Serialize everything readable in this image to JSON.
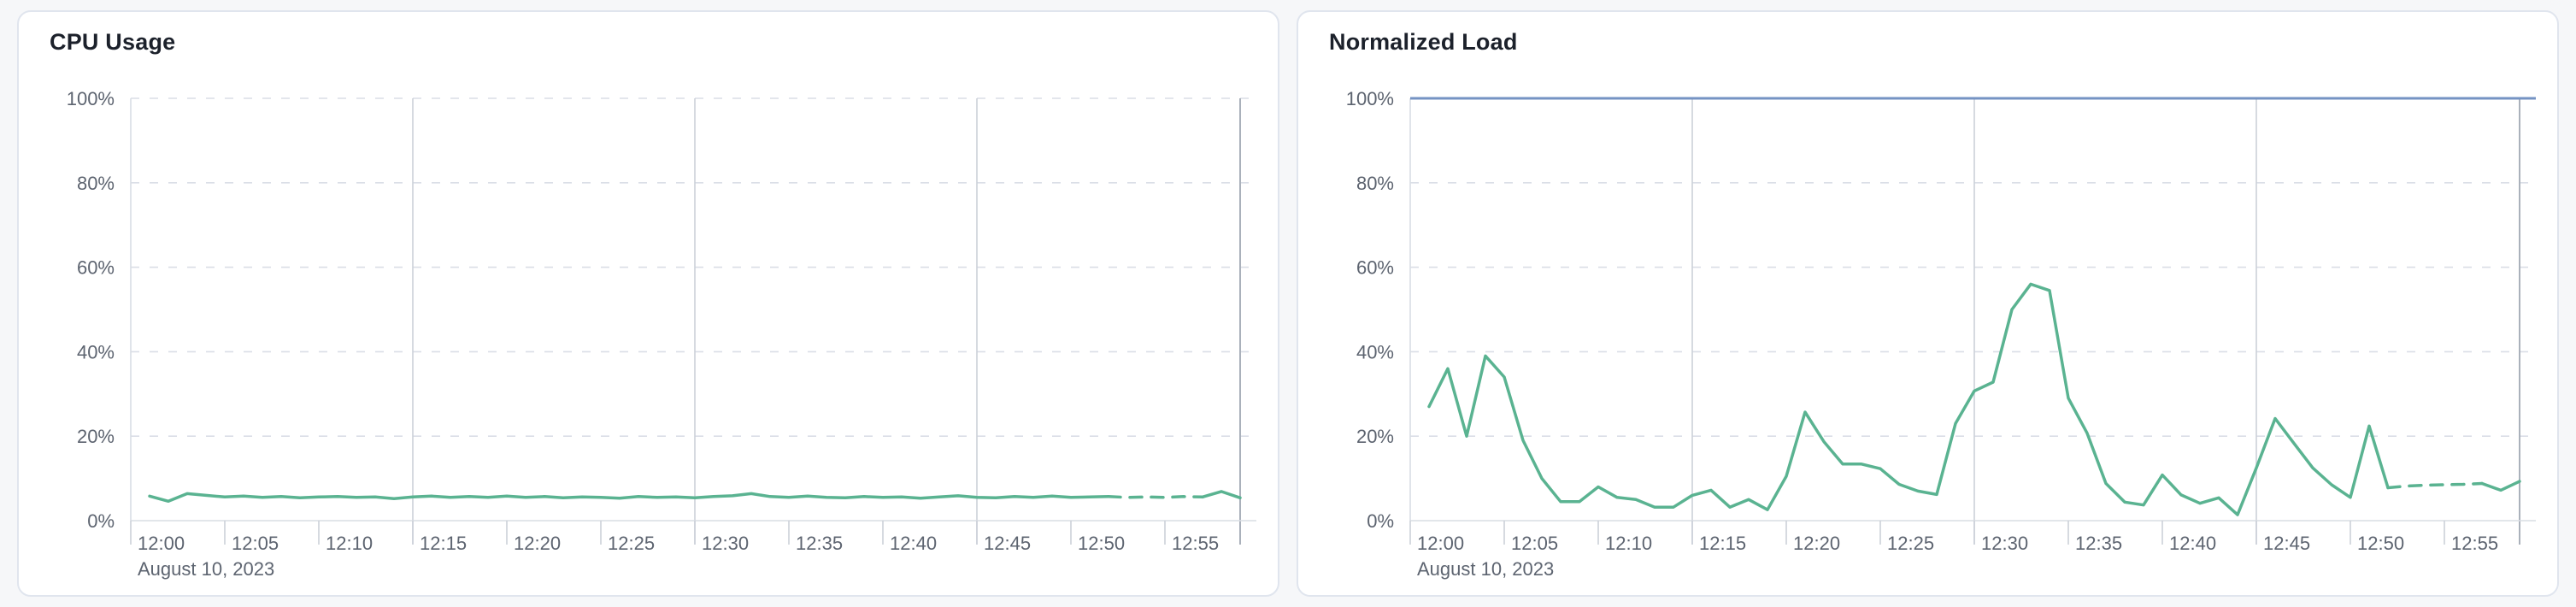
{
  "chart_data": [
    {
      "id": "cpu-usage",
      "type": "line",
      "title": "CPU Usage",
      "series_name": "CPU Usage",
      "series_color": "#5ab391",
      "ylabel": "",
      "xlabel": "",
      "ylim": [
        0,
        100
      ],
      "y_tick_labels": [
        "100%",
        "80%",
        "60%",
        "40%",
        "20%",
        "0%"
      ],
      "x_tick_labels": [
        "12:00",
        "12:05",
        "12:10",
        "12:15",
        "12:20",
        "12:25",
        "12:30",
        "12:35",
        "12:40",
        "12:45",
        "12:50",
        "12:55"
      ],
      "date_label": "August 10, 2023",
      "grid": "dashed-horizontal",
      "vertical_rule_times": [
        "12:15",
        "12:30",
        "12:45"
      ],
      "end_of_data_time": "12:59",
      "dashed_from_index": 51,
      "dashed_to_index": 56,
      "x": [
        "12:01",
        "12:02",
        "12:03",
        "12:04",
        "12:05",
        "12:06",
        "12:07",
        "12:08",
        "12:09",
        "12:10",
        "12:11",
        "12:12",
        "12:13",
        "12:14",
        "12:15",
        "12:16",
        "12:17",
        "12:18",
        "12:19",
        "12:20",
        "12:21",
        "12:22",
        "12:23",
        "12:24",
        "12:25",
        "12:26",
        "12:27",
        "12:28",
        "12:29",
        "12:30",
        "12:31",
        "12:32",
        "12:33",
        "12:34",
        "12:35",
        "12:36",
        "12:37",
        "12:38",
        "12:39",
        "12:40",
        "12:41",
        "12:42",
        "12:43",
        "12:44",
        "12:45",
        "12:46",
        "12:47",
        "12:48",
        "12:49",
        "12:50",
        "12:51",
        "12:52",
        "12:53",
        "12:54",
        "12:55",
        "12:56",
        "12:57",
        "12:58",
        "12:59"
      ],
      "values": [
        5.8,
        4.6,
        6.4,
        6.0,
        5.6,
        5.8,
        5.5,
        5.7,
        5.4,
        5.6,
        5.7,
        5.5,
        5.6,
        5.2,
        5.6,
        5.8,
        5.5,
        5.7,
        5.5,
        5.8,
        5.5,
        5.7,
        5.4,
        5.6,
        5.5,
        5.3,
        5.7,
        5.5,
        5.6,
        5.4,
        5.7,
        5.9,
        6.4,
        5.7,
        5.5,
        5.8,
        5.5,
        5.4,
        5.7,
        5.5,
        5.6,
        5.3,
        5.6,
        5.9,
        5.5,
        5.4,
        5.7,
        5.5,
        5.8,
        5.5,
        5.6,
        5.7,
        5.5,
        5.6,
        5.5,
        5.7,
        5.6,
        6.9,
        5.4
      ],
      "threshold_line": null
    },
    {
      "id": "normalized-load",
      "type": "line",
      "title": "Normalized Load",
      "series_name": "Normalized Load",
      "series_color": "#5ab391",
      "ylabel": "",
      "xlabel": "",
      "ylim": [
        0,
        100
      ],
      "y_tick_labels": [
        "100%",
        "80%",
        "60%",
        "40%",
        "20%",
        "0%"
      ],
      "x_tick_labels": [
        "12:00",
        "12:05",
        "12:10",
        "12:15",
        "12:20",
        "12:25",
        "12:30",
        "12:35",
        "12:40",
        "12:45",
        "12:50",
        "12:55"
      ],
      "date_label": "August 10, 2023",
      "grid": "dashed-horizontal",
      "vertical_rule_times": [
        "12:15",
        "12:30",
        "12:45"
      ],
      "end_of_data_time": "12:59",
      "dashed_from_index": 51,
      "dashed_to_index": 56,
      "x": [
        "12:01",
        "12:02",
        "12:03",
        "12:04",
        "12:05",
        "12:06",
        "12:07",
        "12:08",
        "12:09",
        "12:10",
        "12:11",
        "12:12",
        "12:13",
        "12:14",
        "12:15",
        "12:16",
        "12:17",
        "12:18",
        "12:19",
        "12:20",
        "12:21",
        "12:22",
        "12:23",
        "12:24",
        "12:25",
        "12:26",
        "12:27",
        "12:28",
        "12:29",
        "12:30",
        "12:31",
        "12:32",
        "12:33",
        "12:34",
        "12:35",
        "12:36",
        "12:37",
        "12:38",
        "12:39",
        "12:40",
        "12:41",
        "12:42",
        "12:43",
        "12:44",
        "12:45",
        "12:46",
        "12:47",
        "12:48",
        "12:49",
        "12:50",
        "12:51",
        "12:52",
        "12:53",
        "12:54",
        "12:55",
        "12:56",
        "12:57",
        "12:58",
        "12:59"
      ],
      "values": [
        27,
        36,
        20,
        39,
        34,
        19,
        10,
        4.5,
        4.5,
        8,
        5.5,
        5,
        3.2,
        3.2,
        6,
        7.2,
        3.2,
        5,
        2.6,
        10.5,
        25.7,
        18.7,
        13.4,
        13.4,
        12.3,
        8.6,
        7,
        6.2,
        23,
        30.7,
        32.8,
        50,
        56,
        54.5,
        29,
        20.7,
        8.8,
        4.4,
        3.7,
        10.8,
        6.1,
        4.1,
        5.4,
        1.4,
        12.5,
        24.2,
        18.3,
        12.5,
        8.5,
        5.5,
        22.4,
        7.8,
        8.2,
        8.4,
        8.5,
        8.6,
        8.8,
        7.2,
        9.3
      ],
      "threshold_line": {
        "value": 100,
        "color": "#7593c3"
      }
    }
  ]
}
